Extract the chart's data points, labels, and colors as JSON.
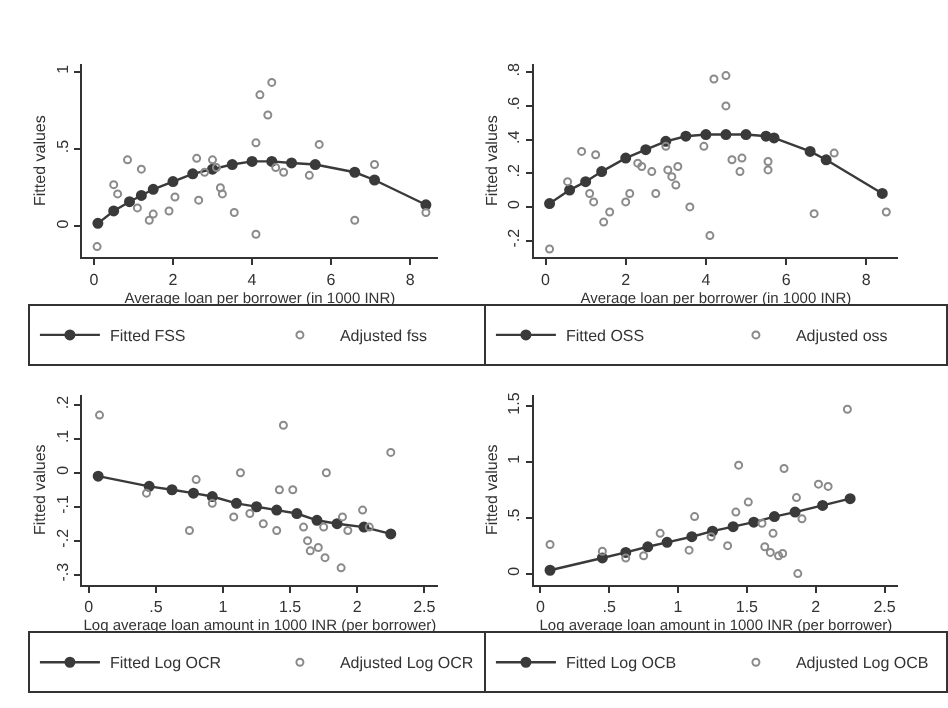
{
  "chart_data": [
    {
      "type": "scatter",
      "xlabel": "Average loan per borrower (in 1000 INR)",
      "ylabel": "Fitted values",
      "xlim": [
        -0.3,
        8.7
      ],
      "ylim": [
        -0.2,
        1.05
      ],
      "xticks": [
        0,
        2,
        4,
        6,
        8
      ],
      "yticks": [
        0,
        {
          "value": 0.5,
          "label": ".5"
        },
        1
      ],
      "legend": "bottom",
      "grid": false,
      "series": [
        {
          "name": "Fitted FSS",
          "type": "line",
          "marker": "circle",
          "color": "#3a3a3a",
          "x": [
            0.1,
            0.5,
            0.9,
            1.2,
            1.5,
            2.0,
            2.5,
            3.0,
            3.5,
            4.0,
            4.5,
            5.0,
            5.6,
            6.6,
            7.1,
            8.4
          ],
          "values": [
            0.02,
            0.1,
            0.16,
            0.2,
            0.24,
            0.29,
            0.34,
            0.37,
            0.4,
            0.42,
            0.42,
            0.41,
            0.4,
            0.35,
            0.3,
            0.14
          ]
        },
        {
          "name": "Adjusted fss",
          "marker": "circle",
          "color": "#8a8a8a",
          "x": [
            0.08,
            0.5,
            0.6,
            0.85,
            1.2,
            1.1,
            1.4,
            1.5,
            1.9,
            2.05,
            2.6,
            2.65,
            2.8,
            3.0,
            3.1,
            3.2,
            3.25,
            3.55,
            4.1,
            4.1,
            4.2,
            4.4,
            4.5,
            4.6,
            4.8,
            5.45,
            5.7,
            6.6,
            7.1,
            8.4
          ],
          "values": [
            -0.13,
            0.27,
            0.21,
            0.43,
            0.37,
            0.12,
            0.04,
            0.08,
            0.1,
            0.19,
            0.44,
            0.17,
            0.35,
            0.43,
            0.38,
            0.25,
            0.21,
            0.09,
            -0.05,
            0.54,
            0.85,
            0.72,
            0.93,
            0.38,
            0.35,
            0.33,
            0.53,
            0.04,
            0.4,
            0.09
          ]
        }
      ]
    },
    {
      "type": "scatter",
      "xlabel": "Average loan per borrower (in 1000 INR)",
      "ylabel": "Fitted values",
      "xlim": [
        -0.3,
        8.8
      ],
      "ylim": [
        -0.3,
        0.85
      ],
      "xticks": [
        0,
        2,
        4,
        6,
        8
      ],
      "yticks": [
        {
          "value": -0.2,
          "label": "-.2"
        },
        0,
        {
          "value": 0.2,
          "label": ".2"
        },
        {
          "value": 0.4,
          "label": ".4"
        },
        {
          "value": 0.6,
          "label": ".6"
        },
        {
          "value": 0.8,
          "label": ".8"
        }
      ],
      "legend": "bottom",
      "grid": false,
      "series": [
        {
          "name": "Fitted OSS",
          "type": "line",
          "marker": "circle",
          "color": "#3a3a3a",
          "x": [
            0.1,
            0.6,
            1.0,
            1.4,
            2.0,
            2.5,
            3.0,
            3.5,
            4.0,
            4.5,
            5.0,
            5.5,
            5.7,
            6.6,
            7.0,
            8.4
          ],
          "values": [
            0.02,
            0.1,
            0.15,
            0.21,
            0.29,
            0.34,
            0.39,
            0.42,
            0.43,
            0.43,
            0.43,
            0.42,
            0.41,
            0.33,
            0.28,
            0.08
          ]
        },
        {
          "name": "Adjusted oss",
          "marker": "circle",
          "color": "#8a8a8a",
          "x": [
            0.1,
            0.55,
            0.9,
            1.1,
            1.2,
            1.25,
            1.45,
            1.6,
            2.0,
            2.1,
            2.3,
            2.4,
            2.65,
            2.75,
            3.0,
            3.05,
            3.15,
            3.25,
            3.3,
            3.6,
            3.95,
            4.1,
            4.2,
            4.5,
            4.5,
            4.65,
            4.85,
            4.9,
            5.55,
            5.55,
            6.7,
            7.2,
            8.5
          ],
          "values": [
            -0.25,
            0.15,
            0.33,
            0.08,
            0.03,
            0.31,
            -0.09,
            -0.03,
            0.03,
            0.08,
            0.26,
            0.24,
            0.21,
            0.08,
            0.36,
            0.22,
            0.18,
            0.13,
            0.24,
            0.0,
            0.36,
            -0.17,
            0.76,
            0.78,
            0.6,
            0.28,
            0.21,
            0.29,
            0.27,
            0.22,
            -0.04,
            0.32,
            -0.03
          ]
        }
      ]
    },
    {
      "type": "scatter",
      "xlabel": "Log average loan amount in 1000 INR (per borrower)",
      "ylabel": "Fitted values",
      "xlim": [
        -0.05,
        2.6
      ],
      "ylim": [
        -0.33,
        0.23
      ],
      "xticks": [
        0,
        {
          "value": 0.5,
          "label": ".5"
        },
        1,
        1.5,
        2,
        2.5
      ],
      "yticks": [
        {
          "value": -0.3,
          "label": "-.3"
        },
        {
          "value": -0.2,
          "label": "-.2"
        },
        {
          "value": -0.1,
          "label": "-.1"
        },
        0,
        {
          "value": 0.1,
          "label": ".1"
        },
        {
          "value": 0.2,
          "label": ".2"
        }
      ],
      "legend": "bottom",
      "grid": false,
      "series": [
        {
          "name": "Fitted Log OCR",
          "type": "line",
          "marker": "circle",
          "color": "#3a3a3a",
          "x": [
            0.07,
            0.45,
            0.62,
            0.78,
            0.92,
            1.1,
            1.25,
            1.4,
            1.55,
            1.7,
            1.85,
            2.05,
            2.25
          ],
          "values": [
            -0.01,
            -0.04,
            -0.05,
            -0.06,
            -0.07,
            -0.09,
            -0.1,
            -0.11,
            -0.12,
            -0.14,
            -0.15,
            -0.16,
            -0.18
          ]
        },
        {
          "name": "Adjusted Log OCR",
          "marker": "circle",
          "color": "#8a8a8a",
          "x": [
            0.08,
            0.43,
            0.8,
            0.75,
            0.92,
            1.08,
            1.13,
            1.2,
            1.3,
            1.4,
            1.42,
            1.45,
            1.52,
            1.6,
            1.63,
            1.65,
            1.71,
            1.75,
            1.77,
            1.76,
            1.88,
            1.89,
            1.93,
            2.04,
            2.09,
            2.25
          ],
          "values": [
            0.17,
            -0.06,
            -0.02,
            -0.17,
            -0.09,
            -0.13,
            0.0,
            -0.12,
            -0.15,
            -0.17,
            -0.05,
            0.14,
            -0.05,
            -0.16,
            -0.2,
            -0.23,
            -0.22,
            -0.16,
            0.0,
            -0.25,
            -0.28,
            -0.13,
            -0.17,
            -0.11,
            -0.16,
            0.06
          ]
        }
      ]
    },
    {
      "type": "scatter",
      "xlabel": "Log average loan amount in 1000 INR (per borrower)",
      "ylabel": "Fitted values",
      "xlim": [
        -0.05,
        2.6
      ],
      "ylim": [
        -0.1,
        1.6
      ],
      "xticks": [
        0,
        {
          "value": 0.5,
          "label": ".5"
        },
        1,
        1.5,
        2,
        2.5
      ],
      "yticks": [
        0,
        {
          "value": 0.5,
          "label": ".5"
        },
        1,
        1.5
      ],
      "legend": "bottom",
      "grid": false,
      "series": [
        {
          "name": "Fitted Log OCB",
          "type": "line",
          "marker": "circle",
          "color": "#3a3a3a",
          "x": [
            0.07,
            0.45,
            0.62,
            0.78,
            0.92,
            1.1,
            1.25,
            1.4,
            1.55,
            1.7,
            1.85,
            2.05,
            2.25
          ],
          "values": [
            0.03,
            0.14,
            0.19,
            0.24,
            0.28,
            0.33,
            0.38,
            0.42,
            0.46,
            0.51,
            0.55,
            0.61,
            0.67
          ]
        },
        {
          "name": "Adjusted Log OCB",
          "marker": "circle",
          "color": "#8a8a8a",
          "x": [
            0.07,
            0.45,
            0.62,
            0.75,
            0.87,
            1.08,
            1.12,
            1.24,
            1.36,
            1.42,
            1.44,
            1.51,
            1.61,
            1.63,
            1.67,
            1.69,
            1.73,
            1.76,
            1.77,
            1.86,
            1.87,
            1.9,
            2.02,
            2.09,
            2.23
          ],
          "values": [
            0.26,
            0.2,
            0.14,
            0.16,
            0.36,
            0.21,
            0.51,
            0.33,
            0.25,
            0.55,
            0.97,
            0.64,
            0.45,
            0.24,
            0.19,
            0.36,
            0.16,
            0.18,
            0.94,
            0.68,
            0.0,
            0.49,
            0.8,
            0.78,
            1.47
          ]
        }
      ]
    }
  ]
}
